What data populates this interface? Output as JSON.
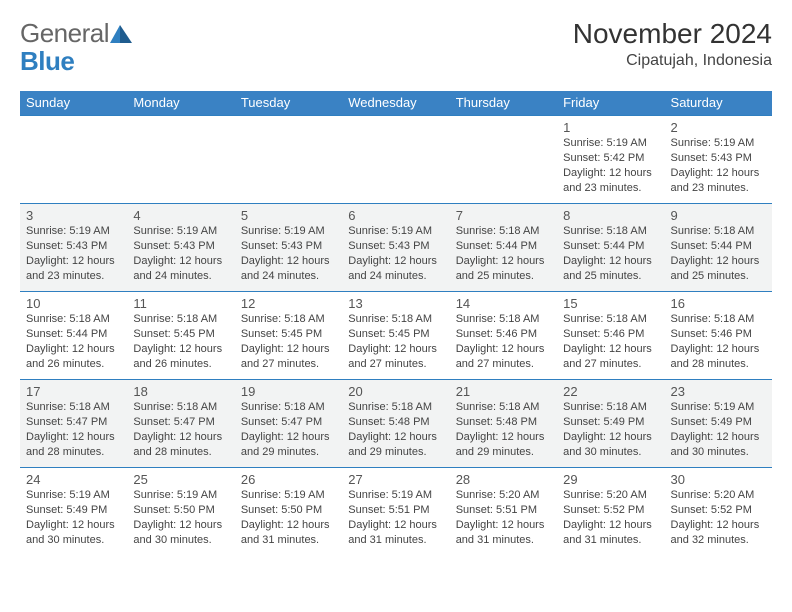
{
  "logo": {
    "part1": "General",
    "part2": "Blue"
  },
  "title": "November 2024",
  "subtitle": "Cipatujah, Indonesia",
  "header_bg": "#3a82c4",
  "header_fg": "#ffffff",
  "row_alt_bg": "#f2f3f3",
  "border_color": "#2f7fc0",
  "weekdays": [
    "Sunday",
    "Monday",
    "Tuesday",
    "Wednesday",
    "Thursday",
    "Friday",
    "Saturday"
  ],
  "weeks": [
    [
      null,
      null,
      null,
      null,
      null,
      {
        "n": "1",
        "sunrise": "Sunrise: 5:19 AM",
        "sunset": "Sunset: 5:42 PM",
        "daylight": "Daylight: 12 hours and 23 minutes."
      },
      {
        "n": "2",
        "sunrise": "Sunrise: 5:19 AM",
        "sunset": "Sunset: 5:43 PM",
        "daylight": "Daylight: 12 hours and 23 minutes."
      }
    ],
    [
      {
        "n": "3",
        "sunrise": "Sunrise: 5:19 AM",
        "sunset": "Sunset: 5:43 PM",
        "daylight": "Daylight: 12 hours and 23 minutes."
      },
      {
        "n": "4",
        "sunrise": "Sunrise: 5:19 AM",
        "sunset": "Sunset: 5:43 PM",
        "daylight": "Daylight: 12 hours and 24 minutes."
      },
      {
        "n": "5",
        "sunrise": "Sunrise: 5:19 AM",
        "sunset": "Sunset: 5:43 PM",
        "daylight": "Daylight: 12 hours and 24 minutes."
      },
      {
        "n": "6",
        "sunrise": "Sunrise: 5:19 AM",
        "sunset": "Sunset: 5:43 PM",
        "daylight": "Daylight: 12 hours and 24 minutes."
      },
      {
        "n": "7",
        "sunrise": "Sunrise: 5:18 AM",
        "sunset": "Sunset: 5:44 PM",
        "daylight": "Daylight: 12 hours and 25 minutes."
      },
      {
        "n": "8",
        "sunrise": "Sunrise: 5:18 AM",
        "sunset": "Sunset: 5:44 PM",
        "daylight": "Daylight: 12 hours and 25 minutes."
      },
      {
        "n": "9",
        "sunrise": "Sunrise: 5:18 AM",
        "sunset": "Sunset: 5:44 PM",
        "daylight": "Daylight: 12 hours and 25 minutes."
      }
    ],
    [
      {
        "n": "10",
        "sunrise": "Sunrise: 5:18 AM",
        "sunset": "Sunset: 5:44 PM",
        "daylight": "Daylight: 12 hours and 26 minutes."
      },
      {
        "n": "11",
        "sunrise": "Sunrise: 5:18 AM",
        "sunset": "Sunset: 5:45 PM",
        "daylight": "Daylight: 12 hours and 26 minutes."
      },
      {
        "n": "12",
        "sunrise": "Sunrise: 5:18 AM",
        "sunset": "Sunset: 5:45 PM",
        "daylight": "Daylight: 12 hours and 27 minutes."
      },
      {
        "n": "13",
        "sunrise": "Sunrise: 5:18 AM",
        "sunset": "Sunset: 5:45 PM",
        "daylight": "Daylight: 12 hours and 27 minutes."
      },
      {
        "n": "14",
        "sunrise": "Sunrise: 5:18 AM",
        "sunset": "Sunset: 5:46 PM",
        "daylight": "Daylight: 12 hours and 27 minutes."
      },
      {
        "n": "15",
        "sunrise": "Sunrise: 5:18 AM",
        "sunset": "Sunset: 5:46 PM",
        "daylight": "Daylight: 12 hours and 27 minutes."
      },
      {
        "n": "16",
        "sunrise": "Sunrise: 5:18 AM",
        "sunset": "Sunset: 5:46 PM",
        "daylight": "Daylight: 12 hours and 28 minutes."
      }
    ],
    [
      {
        "n": "17",
        "sunrise": "Sunrise: 5:18 AM",
        "sunset": "Sunset: 5:47 PM",
        "daylight": "Daylight: 12 hours and 28 minutes."
      },
      {
        "n": "18",
        "sunrise": "Sunrise: 5:18 AM",
        "sunset": "Sunset: 5:47 PM",
        "daylight": "Daylight: 12 hours and 28 minutes."
      },
      {
        "n": "19",
        "sunrise": "Sunrise: 5:18 AM",
        "sunset": "Sunset: 5:47 PM",
        "daylight": "Daylight: 12 hours and 29 minutes."
      },
      {
        "n": "20",
        "sunrise": "Sunrise: 5:18 AM",
        "sunset": "Sunset: 5:48 PM",
        "daylight": "Daylight: 12 hours and 29 minutes."
      },
      {
        "n": "21",
        "sunrise": "Sunrise: 5:18 AM",
        "sunset": "Sunset: 5:48 PM",
        "daylight": "Daylight: 12 hours and 29 minutes."
      },
      {
        "n": "22",
        "sunrise": "Sunrise: 5:18 AM",
        "sunset": "Sunset: 5:49 PM",
        "daylight": "Daylight: 12 hours and 30 minutes."
      },
      {
        "n": "23",
        "sunrise": "Sunrise: 5:19 AM",
        "sunset": "Sunset: 5:49 PM",
        "daylight": "Daylight: 12 hours and 30 minutes."
      }
    ],
    [
      {
        "n": "24",
        "sunrise": "Sunrise: 5:19 AM",
        "sunset": "Sunset: 5:49 PM",
        "daylight": "Daylight: 12 hours and 30 minutes."
      },
      {
        "n": "25",
        "sunrise": "Sunrise: 5:19 AM",
        "sunset": "Sunset: 5:50 PM",
        "daylight": "Daylight: 12 hours and 30 minutes."
      },
      {
        "n": "26",
        "sunrise": "Sunrise: 5:19 AM",
        "sunset": "Sunset: 5:50 PM",
        "daylight": "Daylight: 12 hours and 31 minutes."
      },
      {
        "n": "27",
        "sunrise": "Sunrise: 5:19 AM",
        "sunset": "Sunset: 5:51 PM",
        "daylight": "Daylight: 12 hours and 31 minutes."
      },
      {
        "n": "28",
        "sunrise": "Sunrise: 5:20 AM",
        "sunset": "Sunset: 5:51 PM",
        "daylight": "Daylight: 12 hours and 31 minutes."
      },
      {
        "n": "29",
        "sunrise": "Sunrise: 5:20 AM",
        "sunset": "Sunset: 5:52 PM",
        "daylight": "Daylight: 12 hours and 31 minutes."
      },
      {
        "n": "30",
        "sunrise": "Sunrise: 5:20 AM",
        "sunset": "Sunset: 5:52 PM",
        "daylight": "Daylight: 12 hours and 32 minutes."
      }
    ]
  ]
}
